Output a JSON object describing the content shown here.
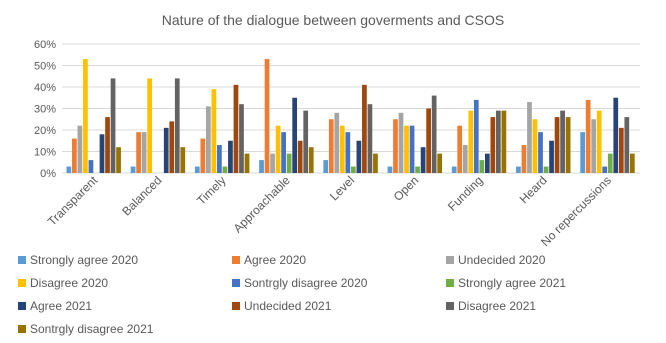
{
  "chart_data": {
    "type": "bar",
    "title": "Nature of the dialogue between  goverments and CSOS",
    "categories": [
      "Transparent",
      "Balanced",
      "Timely",
      "Approachable",
      "Level",
      "Open",
      "Funding",
      "Heard",
      "No repercussions"
    ],
    "ylim": [
      0,
      0.6
    ],
    "yticks": [
      "0%",
      "10%",
      "20%",
      "30%",
      "40%",
      "50%",
      "60%"
    ],
    "grid": true,
    "legend_position": "bottom",
    "series": [
      {
        "name": "Strongly agree 2020",
        "color": "#5b9bd5",
        "values": [
          0.03,
          0.03,
          0.03,
          0.06,
          0.06,
          0.03,
          0.03,
          0.03,
          0.19
        ]
      },
      {
        "name": "Agree 2020",
        "color": "#ed7d31",
        "values": [
          0.16,
          0.19,
          0.16,
          0.53,
          0.25,
          0.25,
          0.22,
          0.13,
          0.34
        ]
      },
      {
        "name": "Undecided 2020",
        "color": "#a5a5a5",
        "values": [
          0.22,
          0.19,
          0.31,
          0.09,
          0.28,
          0.28,
          0.13,
          0.33,
          0.25
        ]
      },
      {
        "name": "Disagree 2020",
        "color": "#ffc000",
        "values": [
          0.53,
          0.44,
          0.39,
          0.22,
          0.22,
          0.22,
          0.29,
          0.25,
          0.29
        ]
      },
      {
        "name": "Sontrgly disagree 2020",
        "color": "#4472c4",
        "values": [
          0.06,
          0.0,
          0.13,
          0.19,
          0.19,
          0.22,
          0.34,
          0.19,
          0.03
        ]
      },
      {
        "name": "Strongly agree 2021",
        "color": "#70ad47",
        "values": [
          0.0,
          0.0,
          0.03,
          0.09,
          0.03,
          0.03,
          0.06,
          0.03,
          0.09
        ]
      },
      {
        "name": "Agree 2021",
        "color": "#264478",
        "values": [
          0.18,
          0.21,
          0.15,
          0.35,
          0.15,
          0.12,
          0.09,
          0.15,
          0.35
        ]
      },
      {
        "name": "Undecided 2021",
        "color": "#9e480e",
        "values": [
          0.26,
          0.24,
          0.41,
          0.15,
          0.41,
          0.3,
          0.26,
          0.26,
          0.21
        ]
      },
      {
        "name": "Disagree 2021",
        "color": "#636363",
        "values": [
          0.44,
          0.44,
          0.32,
          0.29,
          0.32,
          0.36,
          0.29,
          0.29,
          0.26
        ]
      },
      {
        "name": "Sontrgly disagree 2021",
        "color": "#997300",
        "values": [
          0.12,
          0.12,
          0.09,
          0.12,
          0.09,
          0.09,
          0.29,
          0.26,
          0.09
        ]
      }
    ]
  }
}
